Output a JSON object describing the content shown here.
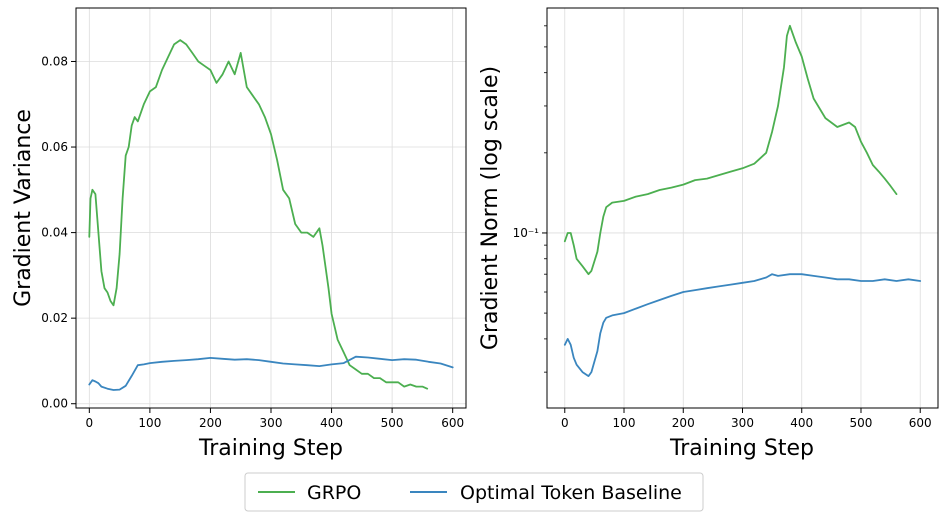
{
  "colors": {
    "grpo": "#4caf50",
    "otb": "#3a86bf",
    "grid": "#dcdcdc"
  },
  "legend": {
    "grpo_label": "GRPO",
    "otb_label": "Optimal Token Baseline"
  },
  "chart_data": [
    {
      "type": "line",
      "xlabel": "Training Step",
      "ylabel": "Gradient Variance",
      "xlim": [
        -22,
        622
      ],
      "ylim": [
        -0.001,
        0.0925
      ],
      "xticks": [
        0,
        100,
        200,
        300,
        400,
        500,
        600
      ],
      "xtick_labels": [
        "0",
        "100",
        "200",
        "300",
        "400",
        "500",
        "600"
      ],
      "yticks": [
        0.0,
        0.02,
        0.04,
        0.06,
        0.08
      ],
      "ytick_labels": [
        "0.00",
        "0.02",
        "0.04",
        "0.06",
        "0.08"
      ],
      "grid": true,
      "series": [
        {
          "name": "GRPO",
          "x": [
            0,
            2,
            5,
            10,
            15,
            20,
            25,
            30,
            35,
            40,
            45,
            50,
            55,
            60,
            65,
            70,
            75,
            80,
            90,
            100,
            110,
            120,
            130,
            140,
            150,
            160,
            170,
            180,
            190,
            200,
            210,
            220,
            230,
            240,
            250,
            260,
            270,
            280,
            290,
            300,
            310,
            320,
            330,
            340,
            350,
            360,
            370,
            380,
            385,
            390,
            395,
            400,
            405,
            410,
            420,
            430,
            440,
            450,
            460,
            470,
            480,
            490,
            500,
            510,
            520,
            530,
            540,
            550,
            558
          ],
          "values": [
            0.039,
            0.048,
            0.05,
            0.049,
            0.04,
            0.031,
            0.027,
            0.026,
            0.024,
            0.023,
            0.027,
            0.035,
            0.048,
            0.058,
            0.06,
            0.065,
            0.067,
            0.066,
            0.07,
            0.073,
            0.074,
            0.078,
            0.081,
            0.084,
            0.085,
            0.084,
            0.082,
            0.08,
            0.079,
            0.078,
            0.075,
            0.077,
            0.08,
            0.077,
            0.082,
            0.074,
            0.072,
            0.07,
            0.067,
            0.063,
            0.057,
            0.05,
            0.048,
            0.042,
            0.04,
            0.04,
            0.039,
            0.041,
            0.037,
            0.032,
            0.027,
            0.021,
            0.018,
            0.015,
            0.012,
            0.009,
            0.008,
            0.007,
            0.007,
            0.006,
            0.006,
            0.005,
            0.005,
            0.005,
            0.004,
            0.0045,
            0.004,
            0.004,
            0.0035
          ]
        },
        {
          "name": "Optimal Token Baseline",
          "x": [
            0,
            5,
            10,
            15,
            20,
            30,
            40,
            50,
            60,
            70,
            80,
            90,
            100,
            120,
            140,
            160,
            180,
            200,
            220,
            240,
            260,
            280,
            300,
            320,
            340,
            360,
            380,
            400,
            420,
            440,
            460,
            480,
            500,
            520,
            540,
            560,
            580,
            600
          ],
          "values": [
            0.0045,
            0.0055,
            0.0052,
            0.0048,
            0.004,
            0.0035,
            0.0032,
            0.0033,
            0.0042,
            0.0065,
            0.009,
            0.0092,
            0.0095,
            0.0098,
            0.01,
            0.0102,
            0.0104,
            0.0107,
            0.0105,
            0.0103,
            0.0104,
            0.0102,
            0.0098,
            0.0094,
            0.0092,
            0.009,
            0.0088,
            0.0092,
            0.0095,
            0.011,
            0.0108,
            0.0105,
            0.0102,
            0.0104,
            0.0103,
            0.0098,
            0.0094,
            0.0085
          ]
        }
      ]
    },
    {
      "type": "line",
      "xlabel": "Training Step",
      "ylabel": "Gradient Norm (log scale)",
      "yscale": "log",
      "xlim": [
        -30,
        630
      ],
      "ylim": [
        0.022,
        0.7
      ],
      "xticks": [
        0,
        100,
        200,
        300,
        400,
        500,
        600
      ],
      "xtick_labels": [
        "0",
        "100",
        "200",
        "300",
        "400",
        "500",
        "600"
      ],
      "yticks_major": [
        0.1
      ],
      "ytick_labels": [
        "10⁻¹"
      ],
      "grid": true,
      "series": [
        {
          "name": "GRPO",
          "x": [
            0,
            5,
            10,
            15,
            20,
            30,
            40,
            45,
            55,
            60,
            65,
            70,
            80,
            100,
            120,
            140,
            160,
            180,
            200,
            220,
            240,
            260,
            280,
            300,
            320,
            340,
            350,
            360,
            370,
            375,
            380,
            390,
            400,
            410,
            420,
            440,
            460,
            480,
            490,
            500,
            510,
            520,
            530,
            540,
            550,
            560
          ],
          "values": [
            0.093,
            0.1,
            0.1,
            0.09,
            0.08,
            0.075,
            0.07,
            0.072,
            0.085,
            0.1,
            0.115,
            0.125,
            0.13,
            0.132,
            0.137,
            0.14,
            0.145,
            0.148,
            0.152,
            0.158,
            0.16,
            0.165,
            0.17,
            0.175,
            0.182,
            0.2,
            0.24,
            0.3,
            0.42,
            0.55,
            0.6,
            0.52,
            0.46,
            0.38,
            0.32,
            0.27,
            0.25,
            0.26,
            0.25,
            0.22,
            0.2,
            0.18,
            0.17,
            0.16,
            0.15,
            0.14
          ]
        },
        {
          "name": "Optimal Token Baseline",
          "x": [
            0,
            5,
            10,
            15,
            20,
            25,
            30,
            40,
            45,
            55,
            60,
            65,
            70,
            80,
            100,
            120,
            140,
            160,
            180,
            200,
            220,
            240,
            260,
            280,
            300,
            320,
            340,
            350,
            360,
            380,
            400,
            420,
            440,
            460,
            480,
            500,
            520,
            540,
            560,
            580,
            600
          ],
          "values": [
            0.038,
            0.04,
            0.038,
            0.034,
            0.032,
            0.031,
            0.03,
            0.029,
            0.03,
            0.036,
            0.042,
            0.046,
            0.048,
            0.049,
            0.05,
            0.052,
            0.054,
            0.056,
            0.058,
            0.06,
            0.061,
            0.062,
            0.063,
            0.064,
            0.065,
            0.066,
            0.068,
            0.07,
            0.069,
            0.07,
            0.07,
            0.069,
            0.068,
            0.067,
            0.067,
            0.066,
            0.066,
            0.067,
            0.066,
            0.067,
            0.066
          ]
        }
      ]
    }
  ]
}
